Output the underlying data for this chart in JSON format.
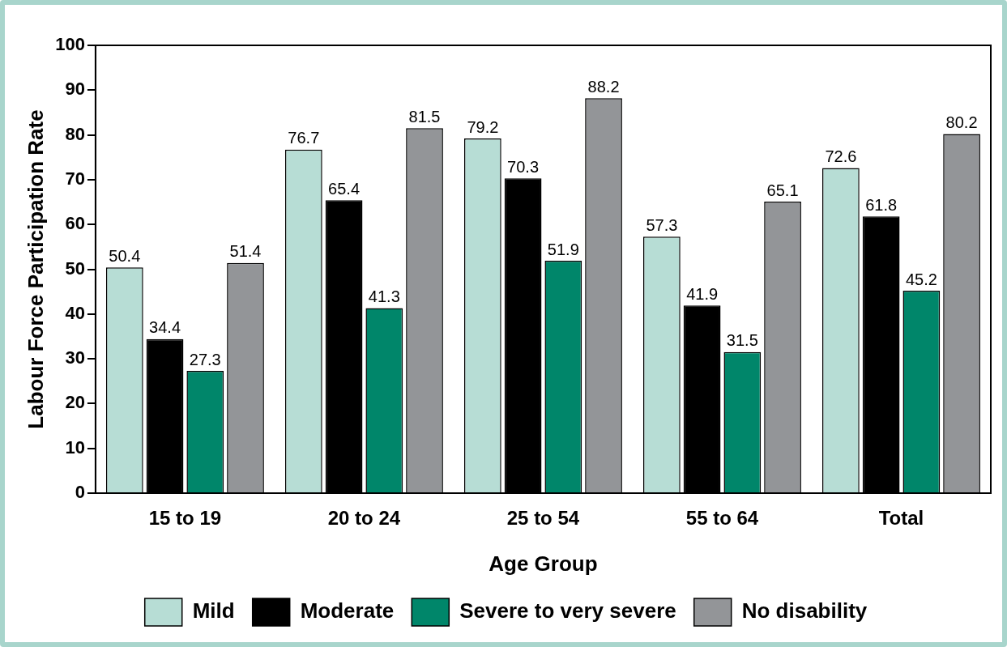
{
  "chart_data": {
    "type": "bar",
    "xlabel": "Age Group",
    "ylabel": "Labour Force Participation Rate",
    "categories": [
      "15 to 19",
      "20 to 24",
      "25 to 54",
      "55 to 64",
      "Total"
    ],
    "series": [
      {
        "name": "Mild",
        "color": "#b7ddd5",
        "values": [
          50.4,
          76.7,
          79.2,
          57.3,
          72.6
        ]
      },
      {
        "name": "Moderate",
        "color": "#000000",
        "values": [
          34.4,
          65.4,
          70.3,
          41.9,
          61.8
        ]
      },
      {
        "name": "Severe to very severe",
        "color": "#00866a",
        "values": [
          27.3,
          41.3,
          51.9,
          31.5,
          45.2
        ]
      },
      {
        "name": "No disability",
        "color": "#939598",
        "values": [
          51.4,
          81.5,
          88.2,
          65.1,
          80.2
        ]
      }
    ],
    "ylim": [
      0,
      100
    ],
    "yticks": [
      0,
      10,
      20,
      30,
      40,
      50,
      60,
      70,
      80,
      90,
      100
    ],
    "grid": false,
    "legend": "bottom",
    "data_labels": true
  }
}
